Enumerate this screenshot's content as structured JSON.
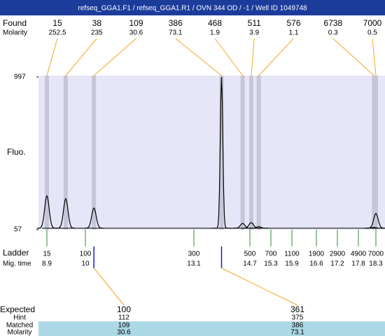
{
  "chart_data": {
    "type": "electropherogram",
    "title": "refseq_GGA1.F1 / refseq_GGA1.R1 / OVN 344 OD / -1 / Well ID 1049748",
    "found": {
      "label": "Found",
      "molarity_label": "Molarity",
      "sizes": [
        15,
        38,
        109,
        386,
        468,
        511,
        576,
        6738,
        7000
      ],
      "molarity": [
        252.5,
        235,
        30.6,
        73.1,
        1.9,
        3.9,
        1.1,
        0.3,
        0.5
      ],
      "peak_heights": [
        265,
        247,
        190,
        997,
        95,
        100,
        75,
        70,
        156
      ]
    },
    "y_label": "Fluo.",
    "ylim": [
      57,
      997
    ],
    "yticks": [
      57,
      997
    ],
    "xlim": [
      8.66,
      18.56
    ],
    "ladder": {
      "label": "Ladder",
      "time_label": "Mig. time",
      "sizes": [
        15,
        100,
        300,
        500,
        700,
        1100,
        1900,
        2900,
        4900,
        7000
      ],
      "times": [
        8.9,
        10,
        13.1,
        14.7,
        15.3,
        15.9,
        16.6,
        17.2,
        17.8,
        18.3
      ]
    },
    "expected": {
      "label": "Expected",
      "values": [
        100,
        361
      ]
    },
    "hint": {
      "label": "Hint",
      "values": [
        112,
        375
      ]
    },
    "matched": {
      "label": "Matched",
      "values": [
        109,
        386
      ]
    },
    "matched_molarity": {
      "label": "Molarity",
      "values": [
        30.6,
        73.1
      ]
    }
  }
}
